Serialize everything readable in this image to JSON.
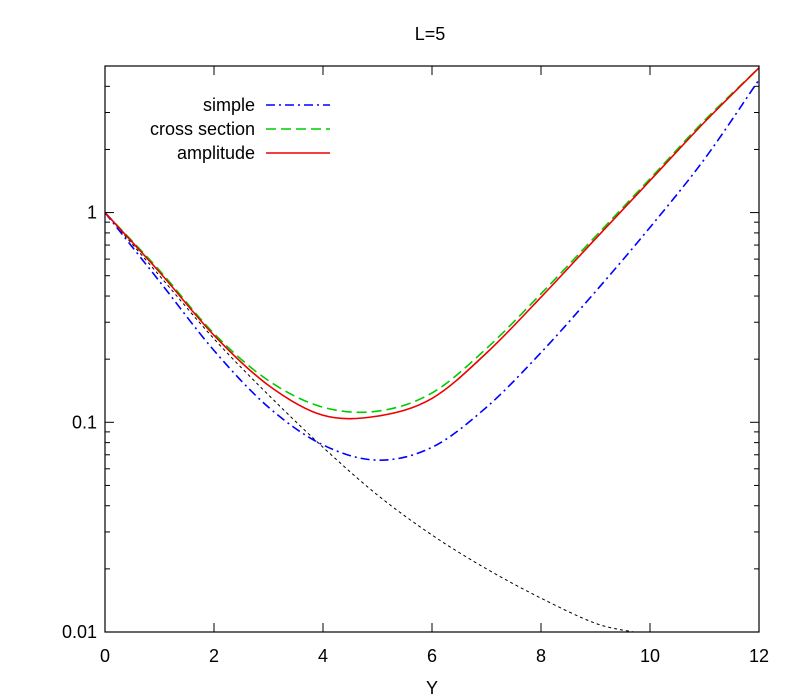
{
  "chart_data": {
    "type": "line",
    "title": "L=5",
    "xlabel": "Y",
    "ylabel": "",
    "xlim": [
      0,
      12
    ],
    "ylim": [
      0.01,
      5
    ],
    "yscale": "log",
    "grid": false,
    "legend_position": "top-left",
    "x_ticks": [
      0,
      2,
      4,
      6,
      8,
      10,
      12
    ],
    "x_tick_labels": [
      "0",
      "2",
      "4",
      "6",
      "8",
      "10",
      "12"
    ],
    "y_ticks": [
      0.01,
      0.1,
      1
    ],
    "y_tick_labels": [
      "0.01",
      "0.1",
      "1"
    ],
    "series": [
      {
        "name": "simple",
        "color": "#0000ff",
        "dash": "dash-dot",
        "x": [
          0,
          1,
          2,
          3,
          4,
          5,
          6,
          7,
          8,
          9,
          10,
          11,
          12
        ],
        "y": [
          1.0,
          0.47,
          0.22,
          0.118,
          0.078,
          0.066,
          0.076,
          0.118,
          0.215,
          0.42,
          0.85,
          1.8,
          4.3
        ]
      },
      {
        "name": "cross section",
        "color": "#00cc00",
        "dash": "dashed",
        "x": [
          0,
          1,
          2,
          3,
          4,
          5,
          6,
          7,
          8,
          9,
          10,
          11,
          12
        ],
        "y": [
          1.0,
          0.53,
          0.265,
          0.158,
          0.118,
          0.113,
          0.138,
          0.225,
          0.41,
          0.77,
          1.45,
          2.75,
          4.9
        ]
      },
      {
        "name": "amplitude",
        "color": "#ee0000",
        "dash": "solid",
        "x": [
          0,
          1,
          2,
          3,
          4,
          5,
          6,
          7,
          8,
          9,
          10,
          11,
          12
        ],
        "y": [
          1.0,
          0.52,
          0.26,
          0.15,
          0.108,
          0.107,
          0.13,
          0.214,
          0.395,
          0.75,
          1.42,
          2.7,
          4.9
        ]
      },
      {
        "name": "",
        "color": "#000000",
        "dash": "dotted",
        "x": [
          0,
          1,
          2,
          3,
          4,
          5,
          6,
          7,
          8,
          9,
          9.7
        ],
        "y": [
          1.0,
          0.5,
          0.25,
          0.135,
          0.076,
          0.045,
          0.029,
          0.02,
          0.0145,
          0.011,
          0.01
        ]
      }
    ]
  }
}
